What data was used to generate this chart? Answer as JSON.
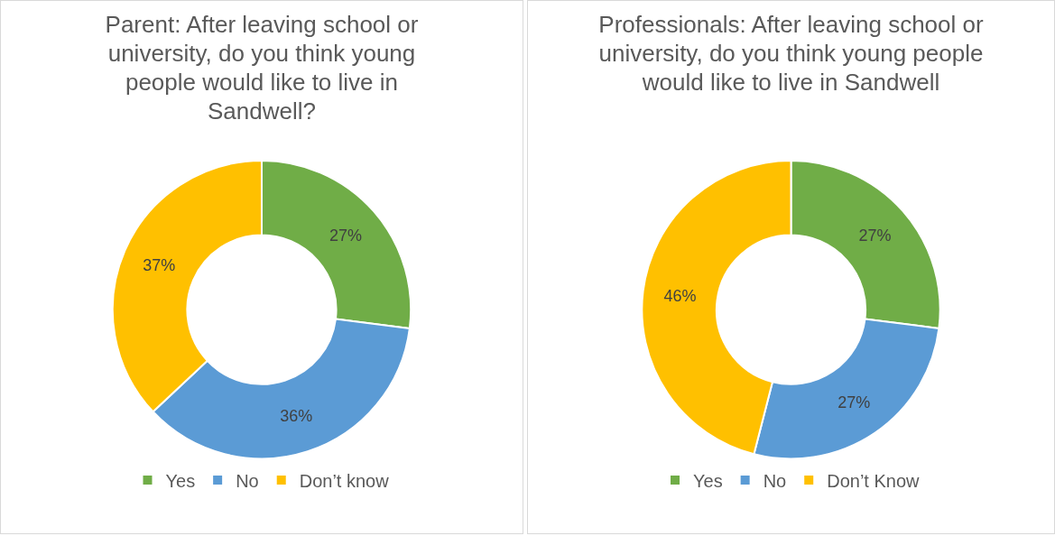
{
  "chart_data": [
    {
      "type": "donut",
      "title": "Parent: After leaving school or university, do you think young people would like to live in Sandwell?",
      "categories": [
        "Yes",
        "No",
        "Don’t know"
      ],
      "values": [
        27,
        36,
        37
      ],
      "value_labels": [
        "27%",
        "36%",
        "37%"
      ],
      "colors": [
        "#70ad47",
        "#5b9bd5",
        "#ffc000"
      ],
      "legend": "bottom"
    },
    {
      "type": "donut",
      "title": "Professionals: After leaving school or university, do you think young people would like to live in Sandwell",
      "categories": [
        "Yes",
        "No",
        "Don’t Know"
      ],
      "values": [
        27,
        27,
        46
      ],
      "value_labels": [
        "27%",
        "27%",
        "46%"
      ],
      "colors": [
        "#70ad47",
        "#5b9bd5",
        "#ffc000"
      ],
      "legend": "bottom"
    }
  ]
}
